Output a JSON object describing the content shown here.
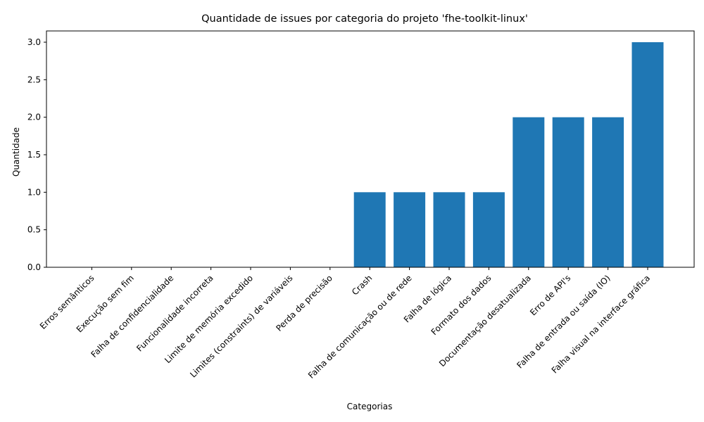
{
  "chart_data": {
    "type": "bar",
    "title": "Quantidade de issues por categoria do projeto 'fhe-toolkit-linux'",
    "xlabel": "Categorias",
    "ylabel": "Quantidade",
    "categories": [
      "Erros semânticos",
      "Execução sem fim",
      "Falha de confidencialidade",
      "Funcionalidade incorreta",
      "Limite de memória excedido",
      "Limites (constraints) de variáveis",
      "Perda de precisão",
      "Crash",
      "Falha de comunicação ou de rede",
      "Falha de lógica",
      "Formato dos dados",
      "Documentação desatualizada",
      "Erro de API's",
      "Falha de entrada ou saída (IO)",
      "Falha visual na interface gráfica"
    ],
    "values": [
      0,
      0,
      0,
      0,
      0,
      0,
      0,
      1,
      1,
      1,
      1,
      2,
      2,
      2,
      3
    ],
    "ylim": [
      0,
      3.15
    ],
    "yticks": [
      0.0,
      0.5,
      1.0,
      1.5,
      2.0,
      2.5,
      3.0
    ],
    "yticklabels": [
      "0.0",
      "0.5",
      "1.0",
      "1.5",
      "2.0",
      "2.5",
      "3.0"
    ],
    "grid": false,
    "bar_color": "#1f77b4"
  }
}
